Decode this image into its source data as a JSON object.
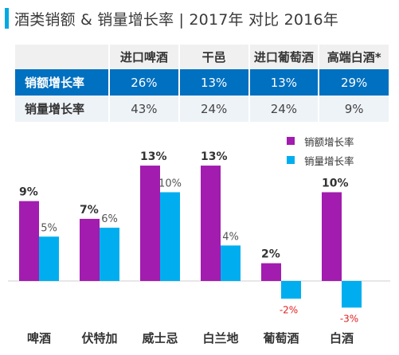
{
  "title": "酒类销额 & 销量增长率 | 2017年 对比 2016年",
  "table": {
    "columns": [
      "进口啤酒",
      "干邑",
      "进口葡萄酒",
      "高端白酒*"
    ],
    "rows": [
      {
        "label": "销额增长率",
        "values": [
          "26%",
          "13%",
          "13%",
          "29%"
        ]
      },
      {
        "label": "销量增长率",
        "values": [
          "43%",
          "24%",
          "24%",
          "9%"
        ]
      }
    ]
  },
  "colors": {
    "sales": "#a21caf",
    "volume": "#00aeef",
    "negative_label": "#e02020",
    "accent": "#00a9e0",
    "header_blue": "#0070c0"
  },
  "chart_data": {
    "type": "bar",
    "categories": [
      "啤酒",
      "伏特加",
      "威士忌",
      "白兰地",
      "葡萄酒",
      "白酒"
    ],
    "series": [
      {
        "name": "销额增长率",
        "values": [
          9,
          7,
          13,
          13,
          2,
          10
        ],
        "labels": [
          "9%",
          "7%",
          "13%",
          "13%",
          "2%",
          "10%"
        ]
      },
      {
        "name": "销量增长率",
        "values": [
          5,
          6,
          10,
          4,
          -2,
          -3
        ],
        "labels": [
          "5%",
          "6%",
          "10%",
          "4%",
          "-2%",
          "-3%"
        ]
      }
    ],
    "legend_position": "top-right",
    "grid": false
  }
}
